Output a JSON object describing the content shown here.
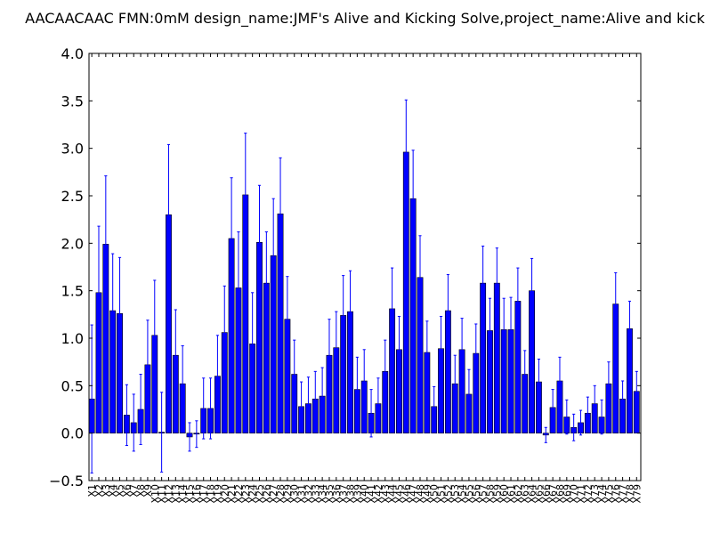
{
  "chart_data": {
    "type": "bar",
    "title": "AACAACAAC  FMN:0mM  design_name:JMF's Alive and Kicking Solve,project_name:Alive and kick",
    "xlabel": "",
    "ylabel": "",
    "ylim": [
      -0.5,
      4.0
    ],
    "yticks": [
      "−0.5",
      "0.0",
      "0.5",
      "1.0",
      "1.5",
      "2.0",
      "2.5",
      "3.0",
      "3.5",
      "4.0"
    ],
    "ytick_values": [
      -0.5,
      0.0,
      0.5,
      1.0,
      1.5,
      2.0,
      2.5,
      3.0,
      3.5,
      4.0
    ],
    "bar_color": "#0000ff",
    "error_color": "#0000ff",
    "grid": false,
    "categories": [
      "X1",
      "X2",
      "X3",
      "X4",
      "X5",
      "X6",
      "X7",
      "X8",
      "X9",
      "X10",
      "X11",
      "X12",
      "X13",
      "X14",
      "X15",
      "X16",
      "X17",
      "X18",
      "X19",
      "X20",
      "X21",
      "X22",
      "X23",
      "X24",
      "X25",
      "X26",
      "X27",
      "X28",
      "X29",
      "X30",
      "X31",
      "X32",
      "X33",
      "X34",
      "X35",
      "X36",
      "X37",
      "X38",
      "X39",
      "X40",
      "X41",
      "X42",
      "X43",
      "X44",
      "X45",
      "X46",
      "X47",
      "X48",
      "X49",
      "X50",
      "X51",
      "X52",
      "X53",
      "X54",
      "X55",
      "X56",
      "X57",
      "X58",
      "X59",
      "X60",
      "X61",
      "X62",
      "X63",
      "X64",
      "X65",
      "X66",
      "X67",
      "X68",
      "X69",
      "X70",
      "X71",
      "X72",
      "X73",
      "X74",
      "X75",
      "X76",
      "X77",
      "X78",
      "X79"
    ],
    "values": [
      0.36,
      1.48,
      1.99,
      1.29,
      1.26,
      0.19,
      0.11,
      0.25,
      0.72,
      1.03,
      0.01,
      2.3,
      0.82,
      0.52,
      -0.04,
      -0.01,
      0.26,
      0.26,
      0.6,
      1.06,
      2.05,
      1.53,
      2.51,
      0.94,
      2.01,
      1.58,
      1.87,
      2.31,
      1.2,
      0.62,
      0.28,
      0.31,
      0.36,
      0.39,
      0.82,
      0.9,
      1.24,
      1.28,
      0.46,
      0.55,
      0.21,
      0.31,
      0.65,
      1.31,
      0.88,
      2.96,
      2.47,
      1.64,
      0.85,
      0.28,
      0.89,
      1.29,
      0.52,
      0.88,
      0.41,
      0.84,
      1.58,
      1.08,
      1.58,
      1.09,
      1.09,
      1.39,
      0.62,
      1.5,
      0.54,
      -0.02,
      0.27,
      0.55,
      0.17,
      0.06,
      0.11,
      0.21,
      0.31,
      0.17,
      0.52,
      1.36,
      0.36,
      1.1,
      0.44
    ],
    "errors": [
      0.78,
      0.7,
      0.72,
      0.6,
      0.59,
      0.32,
      0.3,
      0.37,
      0.47,
      0.58,
      0.42,
      0.74,
      0.48,
      0.4,
      0.15,
      0.14,
      0.32,
      0.32,
      0.43,
      0.49,
      0.64,
      0.59,
      0.65,
      0.54,
      0.6,
      0.54,
      0.6,
      0.59,
      0.45,
      0.36,
      0.26,
      0.28,
      0.29,
      0.3,
      0.38,
      0.38,
      0.42,
      0.43,
      0.34,
      0.33,
      0.25,
      0.27,
      0.33,
      0.43,
      0.35,
      0.55,
      0.51,
      0.44,
      0.33,
      0.21,
      0.34,
      0.38,
      0.3,
      0.33,
      0.26,
      0.31,
      0.39,
      0.34,
      0.37,
      0.33,
      0.34,
      0.35,
      0.25,
      0.34,
      0.24,
      0.08,
      0.19,
      0.25,
      0.18,
      0.14,
      0.13,
      0.17,
      0.19,
      0.18,
      0.23,
      0.33,
      0.19,
      0.29,
      0.21
    ]
  }
}
